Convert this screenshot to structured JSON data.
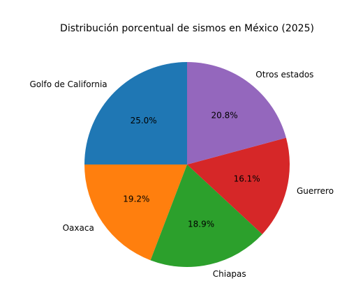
{
  "chart_data": {
    "type": "pie",
    "title": "Distribución porcentual de sismos en México (2025)",
    "slices": [
      {
        "label": "Golfo de California",
        "value": 25.0,
        "pct_label": "25.0%",
        "color": "#1f77b4"
      },
      {
        "label": "Oaxaca",
        "value": 19.2,
        "pct_label": "19.2%",
        "color": "#ff7f0e"
      },
      {
        "label": "Chiapas",
        "value": 18.9,
        "pct_label": "18.9%",
        "color": "#2ca02c"
      },
      {
        "label": "Guerrero",
        "value": 16.1,
        "pct_label": "16.1%",
        "color": "#d62728"
      },
      {
        "label": "Otros estados",
        "value": 20.8,
        "pct_label": "20.8%",
        "color": "#9467bd"
      }
    ],
    "start_angle_deg": 90,
    "direction": "counterclockwise",
    "legend": "none"
  }
}
